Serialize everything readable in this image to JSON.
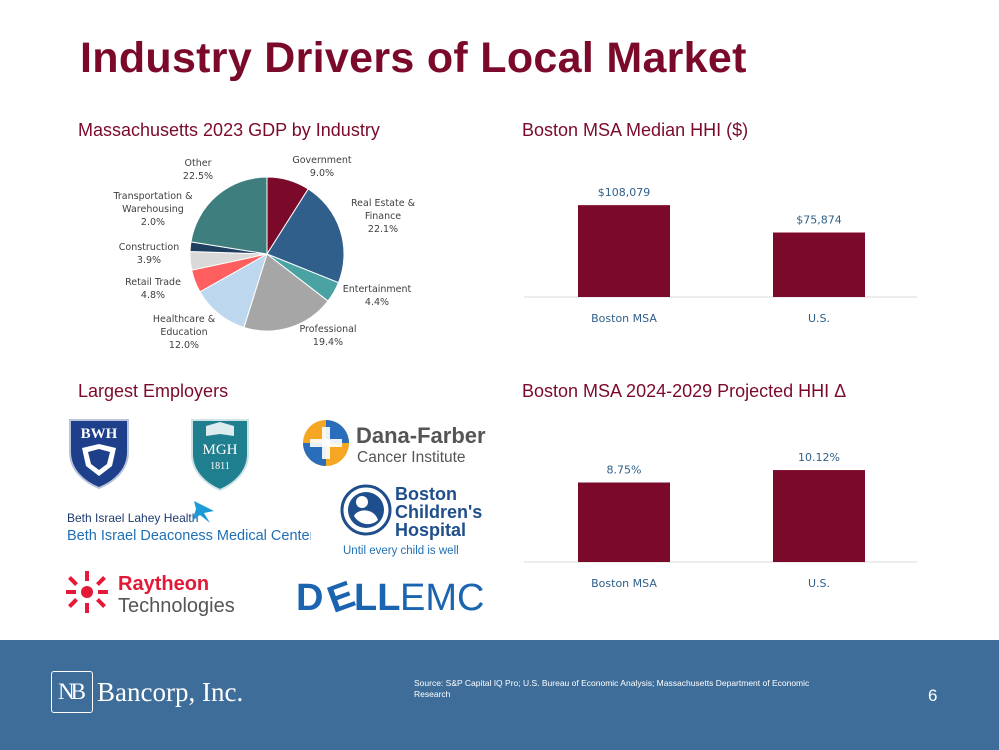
{
  "slide": {
    "title": "Industry Drivers of Local Market",
    "page_number": "6"
  },
  "sections": {
    "gdp_title": "Massachusetts 2023 GDP by Industry",
    "hhi_title": "Boston MSA Median HHI ($)",
    "employers_title": "Largest Employers",
    "proj_title": "Boston MSA 2024-2029 Projected HHI Δ"
  },
  "chart_data": [
    {
      "type": "pie",
      "title": "Massachusetts 2023 GDP by Industry",
      "slices": [
        {
          "name": "Government",
          "value": 9.0,
          "label": "9.0%",
          "color": "#7B0A2A"
        },
        {
          "name": "Real Estate & Finance",
          "value": 22.1,
          "label": "22.1%",
          "color": "#2F5F8A"
        },
        {
          "name": "Entertainment",
          "value": 4.4,
          "label": "4.4%",
          "color": "#4AA3A2"
        },
        {
          "name": "Professional",
          "value": 19.4,
          "label": "19.4%",
          "color": "#A6A6A6"
        },
        {
          "name": "Healthcare & Education",
          "value": 12.0,
          "label": "12.0%",
          "color": "#BDD7EE"
        },
        {
          "name": "Retail Trade",
          "value": 4.8,
          "label": "4.8%",
          "color": "#FF5F5F"
        },
        {
          "name": "Construction",
          "value": 3.9,
          "label": "3.9%",
          "color": "#D9D9D9"
        },
        {
          "name": "Transportation & Warehousing",
          "value": 2.0,
          "label": "2.0%",
          "color": "#1F3F60"
        },
        {
          "name": "Other",
          "value": 22.5,
          "label": "22.5%",
          "color": "#3F7E7E"
        }
      ]
    },
    {
      "type": "bar",
      "title": "Boston MSA Median HHI ($)",
      "categories": [
        "Boston MSA",
        "U.S."
      ],
      "values": [
        108079,
        75874
      ],
      "labels": [
        "$108,079",
        "$75,874"
      ],
      "ylim": [
        0,
        140000
      ],
      "color": "#7B0A2A"
    },
    {
      "type": "bar",
      "title": "Boston MSA 2024-2029 Projected HHI Δ",
      "categories": [
        "Boston MSA",
        "U.S."
      ],
      "values": [
        8.75,
        10.12
      ],
      "labels": [
        "8.75%",
        "10.12%"
      ],
      "ylim": [
        0,
        13.1
      ],
      "color": "#7B0A2A"
    }
  ],
  "pie_label_lines": [
    [
      "Government",
      "9.0%"
    ],
    [
      "Real Estate &",
      "Finance",
      "22.1%"
    ],
    [
      "Entertainment",
      "4.4%"
    ],
    [
      "Professional",
      "19.4%"
    ],
    [
      "Healthcare &",
      "Education",
      "12.0%"
    ],
    [
      "Retail Trade",
      "4.8%"
    ],
    [
      "Construction",
      "3.9%"
    ],
    [
      "Transportation &",
      "Warehousing",
      "2.0%"
    ],
    [
      "Other",
      "22.5%"
    ]
  ],
  "employers": {
    "bwh": "BWH",
    "mgh": "MGH",
    "mgh_year": "1811",
    "dana_line1": "Dana-Farber",
    "dana_line2": "Cancer Institute",
    "bilh_line1": "Beth Israel Lahey Health",
    "bilh_line2": "Beth Israel Deaconess Medical Center",
    "bch_line1": "Boston",
    "bch_line2": "Children's",
    "bch_line3": "Hospital",
    "bch_tagline": "Until every child is well",
    "raytheon_line1": "Raytheon",
    "raytheon_line2": "Technologies",
    "dell_part1": "D",
    "dell_part2": "E",
    "dell_part3": "LL",
    "dell_part4": "EMC"
  },
  "footer": {
    "company_mark": "NB",
    "company_name": "Bancorp, Inc.",
    "source": "Source: S&P Capital IQ Pro; U.S. Bureau of Economic Analysis; Massachusetts Department of Economic Research"
  }
}
